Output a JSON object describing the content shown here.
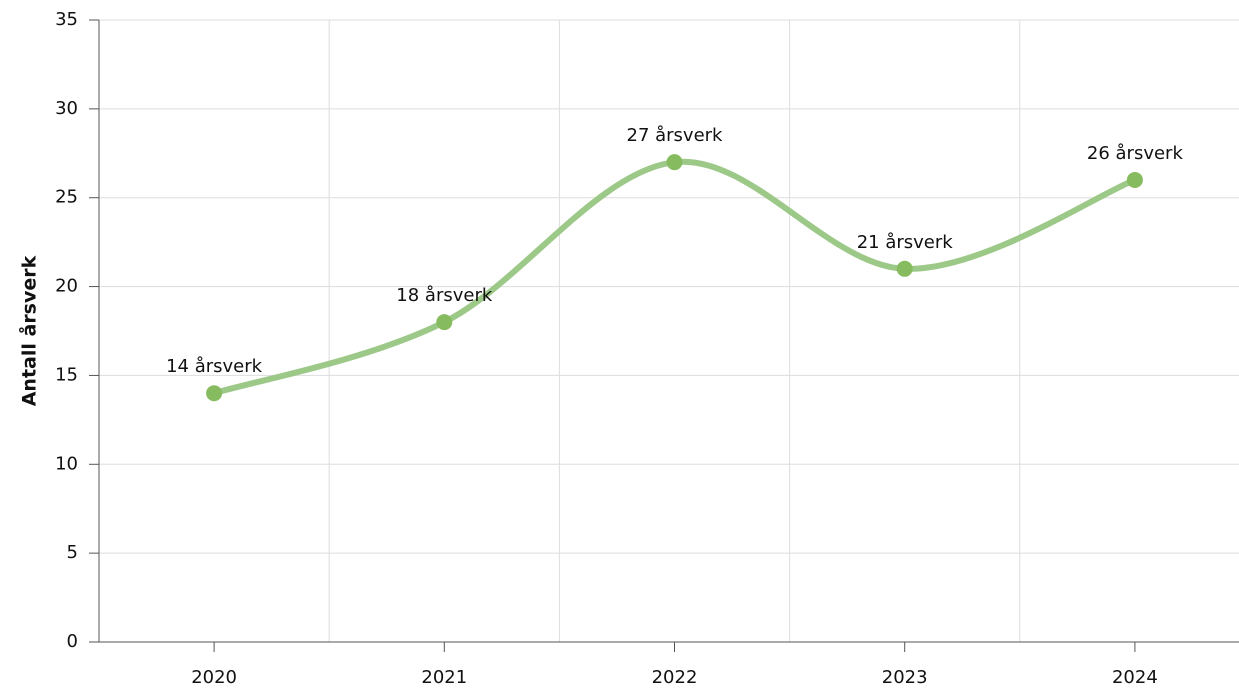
{
  "chart_data": {
    "type": "line",
    "y_label": "Antall årsverk",
    "categories": [
      "2020",
      "2021",
      "2022",
      "2023",
      "2024"
    ],
    "values": [
      14,
      18,
      27,
      21,
      26
    ],
    "value_labels": [
      "14 årsverk",
      "18 årsverk",
      "27 årsverk",
      "21 årsverk",
      "26 årsverk"
    ],
    "color": "#87bb5f",
    "ylim": [
      0,
      35
    ],
    "yticks": [
      0,
      5,
      10,
      15,
      20,
      25,
      30,
      35
    ],
    "grid": true
  }
}
